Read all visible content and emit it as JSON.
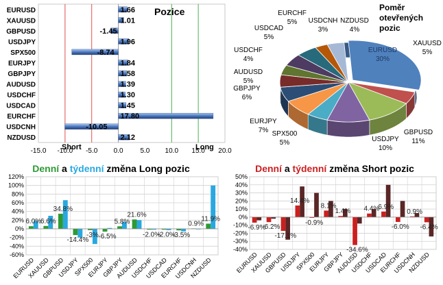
{
  "colors": {
    "denni_green": "#2e9a34",
    "tydenni_cyan": "#29a8e0",
    "denni_red": "#cc1f1f",
    "grid": "#d0d0d0",
    "short_line": "#e05050",
    "long_line": "#4caf50"
  },
  "positions": {
    "title": "Pozice",
    "short_label": "Short",
    "long_label": "Long",
    "chart_data": {
      "type": "bar",
      "orientation": "horizontal",
      "categories": [
        "EURUSD",
        "XAUUSD",
        "GBPUSD",
        "USDJPY",
        "SPX500",
        "EURJPY",
        "GBPJPY",
        "AUDUSD",
        "USDCHF",
        "USDCAD",
        "EURCHF",
        "USDCNH",
        "NZDUSD"
      ],
      "values": [
        1.66,
        1.01,
        -1.45,
        1.96,
        -8.74,
        1.84,
        1.58,
        1.39,
        1.3,
        1.45,
        17.8,
        -10.05,
        2.12
      ],
      "value_labels": [
        "1.66",
        "1.01",
        "-1.45",
        "1.96",
        "-8.74",
        "1.84",
        "1.58",
        "1.39",
        "1.30",
        "1.45",
        "17.80",
        "-10.05",
        "2.12"
      ],
      "xlim": [
        -15,
        20
      ],
      "xticks": [
        -15,
        -10,
        -5,
        0,
        5,
        10,
        15,
        20
      ],
      "xtick_labels": [
        "-15.0",
        "-10.0",
        "-5.0",
        "0.0",
        "5.0",
        "10.0",
        "15.0",
        "20.0"
      ],
      "short_lines": [
        -10,
        -5
      ],
      "long_lines": [
        10,
        15
      ]
    }
  },
  "ratio": {
    "title_lines": [
      "Poměr",
      "otevřených",
      "pozic"
    ],
    "chart_data": {
      "type": "pie",
      "labels": [
        "EURUSD",
        "XAUUSD",
        "GBPUSD",
        "USDJPY",
        "SPX500",
        "EURJPY",
        "GBPJPY",
        "AUDUSD",
        "USDCHF",
        "USDCAD",
        "EURCHF",
        "USDCNH",
        "NZDUSD"
      ],
      "values": [
        30,
        5,
        11,
        10,
        5,
        7,
        6,
        5,
        4,
        5,
        5,
        3,
        4
      ],
      "value_labels": [
        "30%",
        "5%",
        "11%",
        "10%",
        "5%",
        "7%",
        "6%",
        "5%",
        "4%",
        "5%",
        "5%",
        "3%",
        "4%"
      ],
      "colors": [
        "#4f81bd",
        "#c0504d",
        "#9bbb59",
        "#8064a2",
        "#4bacc6",
        "#f79646",
        "#2c4d75",
        "#772c2a",
        "#5f7530",
        "#4d3b62",
        "#276a7c",
        "#b65708",
        "#a5b9d7"
      ]
    }
  },
  "long_change": {
    "title_parts": [
      "Denní",
      " a ",
      "týdenní",
      " změna Long pozic"
    ],
    "chart_data": {
      "type": "bar",
      "categories": [
        "EURUSD",
        "XAUUSD",
        "GBPUSD",
        "USDJPY",
        "SPX500",
        "EURJPY",
        "GBPJPY",
        "AUDUSD",
        "USDCHF",
        "USDCAD",
        "EURCHF",
        "USDCNH",
        "NZDUSD"
      ],
      "series": [
        {
          "values": [
            6.0,
            6.6,
            34.8,
            -14.4,
            -3.0,
            -6.5,
            5.8,
            21.6,
            -2.0,
            -2.0,
            -3.5,
            0.9,
            11.9
          ],
          "color": "#2e9a34"
        },
        {
          "values": [
            18.0,
            30.0,
            66.0,
            -20.0,
            -35.0,
            2.0,
            16.0,
            20.0,
            -2.0,
            -3.0,
            -6.0,
            0.0,
            100.0
          ],
          "color": "#29a8e0"
        }
      ],
      "data_labels": [
        "6.0%",
        "6.6%",
        "34.8%",
        "-14.4%",
        "-3%",
        "-6.5%",
        "5.8%",
        "21.6%",
        "-2.0%",
        "-2.0%",
        "-3.5%",
        "0.9%",
        "11.9%"
      ],
      "ylim": [
        -60,
        120
      ],
      "yticks": [
        -60,
        -40,
        -20,
        0,
        20,
        40,
        60,
        80,
        100,
        120
      ],
      "ytick_labels": [
        "-60%",
        "-40%",
        "-20%",
        "0%",
        "20%",
        "40%",
        "60%",
        "80%",
        "100%",
        "120%"
      ]
    }
  },
  "short_change": {
    "title_parts": [
      "Denní",
      " a ",
      "týdenní",
      " změna Short pozic"
    ],
    "chart_data": {
      "type": "bar",
      "categories": [
        "EURUSD",
        "XAUUSD",
        "GBPUSD",
        "USDJPY",
        "SPX500",
        "EURJPY",
        "GBPJPY",
        "AUDUSD",
        "USDCHF",
        "USDCAD",
        "EURCHF",
        "USDCNH",
        "NZDUSD"
      ],
      "series": [
        {
          "values": [
            -6.9,
            -6.2,
            -17.1,
            14.4,
            -0.9,
            8.1,
            1.4,
            -34.6,
            4.4,
            6.9,
            -6.0,
            0.9,
            -6.4
          ],
          "color": "#cc1f1f"
        },
        {
          "values": [
            -4.0,
            -2.0,
            -28.0,
            38.0,
            30.0,
            20.0,
            10.0,
            -8.0,
            10.0,
            40.0,
            20.0,
            5.0,
            -24.0
          ],
          "color": "#5a2626"
        }
      ],
      "data_labels": [
        "-6.9%",
        "-6.2%",
        "-17.1%",
        "14.4%",
        "-0.9%",
        "8.1%",
        "1.4%",
        "-34.6%",
        "4.4%",
        "6.9%",
        "-6.0%",
        "0.9%",
        "-6.4%"
      ],
      "ylim": [
        -40,
        50
      ],
      "yticks": [
        -40,
        -30,
        -20,
        -10,
        0,
        10,
        20,
        30,
        40,
        50
      ],
      "ytick_labels": [
        "-40%",
        "-30%",
        "-20%",
        "-10%",
        "0%",
        "10%",
        "20%",
        "30%",
        "40%",
        "50%"
      ]
    }
  }
}
